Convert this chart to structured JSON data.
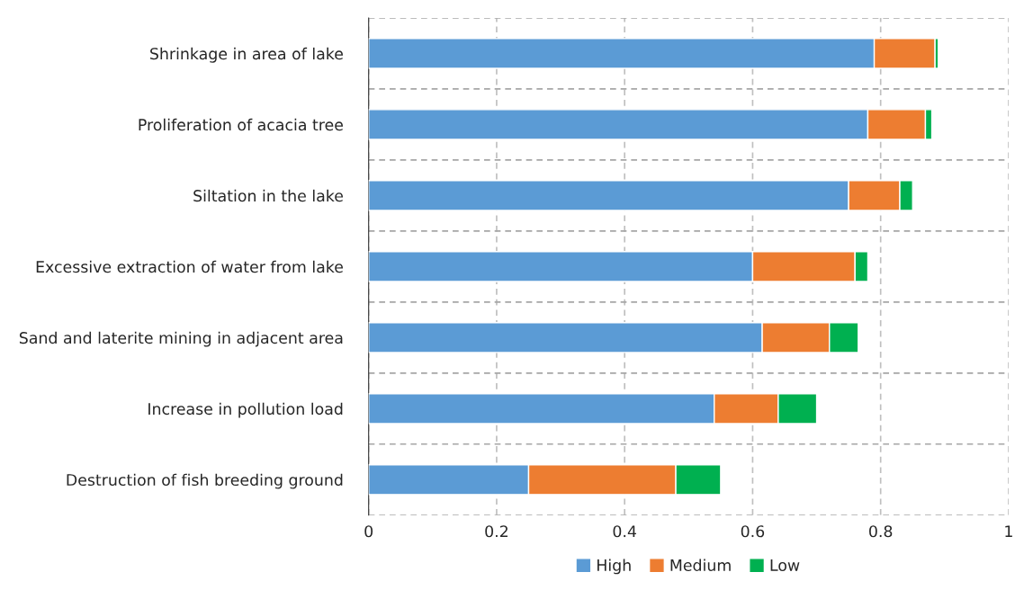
{
  "chart_data": {
    "type": "bar",
    "orientation": "horizontal",
    "stacked": true,
    "categories": [
      "Shrinkage in area of lake",
      "Proliferation of acacia tree",
      "Siltation in the lake",
      "Excessive extraction of water from lake",
      "Sand and laterite mining in adjacent area",
      "Increase in pollution load",
      "Destruction of fish breeding ground"
    ],
    "series": [
      {
        "name": "High",
        "color": "#5b9bd5",
        "values": [
          0.79,
          0.78,
          0.75,
          0.6,
          0.615,
          0.54,
          0.25
        ]
      },
      {
        "name": "Medium",
        "color": "#ed7d31",
        "values": [
          0.095,
          0.09,
          0.08,
          0.16,
          0.105,
          0.1,
          0.23
        ]
      },
      {
        "name": "Low",
        "color": "#00b050",
        "values": [
          0.005,
          0.01,
          0.02,
          0.02,
          0.045,
          0.06,
          0.07
        ]
      }
    ],
    "xlim": [
      0,
      1
    ],
    "xticks": [
      0,
      0.2,
      0.4,
      0.6,
      0.8,
      1
    ],
    "grid": true,
    "legend": "bottom"
  }
}
